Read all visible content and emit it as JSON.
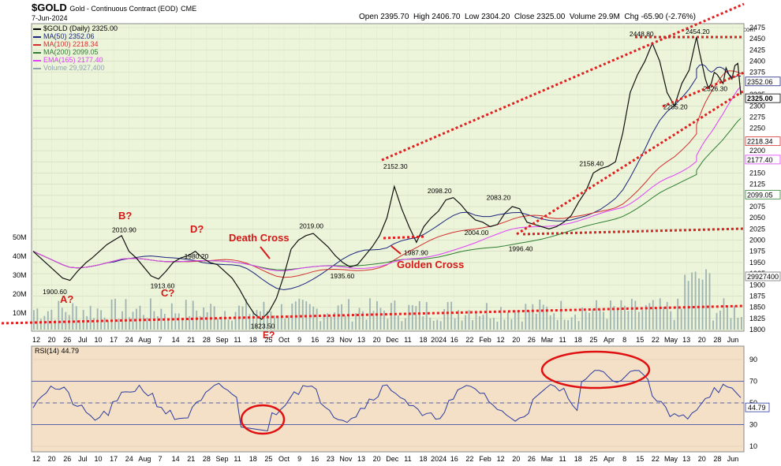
{
  "header": {
    "symbol": "$GOLD",
    "description": "Gold - Continuous Contract (EOD)",
    "exchange": "CME",
    "date": "7-Jun-2024",
    "ohlc": "Open 2395.70  High 2406.70  Low 2304.20  Close 2325.00  Volume 29.9M  Chg -65.90 (-2.76%)",
    "source": "© StockCharts.com"
  },
  "legend": [
    {
      "label": "$GOLD (Daily) 2325.00",
      "color": "#000000",
      "swatch": "ohlc"
    },
    {
      "label": "MA(50) 2352.06",
      "color": "#1a237e"
    },
    {
      "label": "MA(100) 2218.34",
      "color": "#d32f2f"
    },
    {
      "label": "MA(200) 2099.05",
      "color": "#2e7d32"
    },
    {
      "label": "EMA(165) 2177.40",
      "color": "#e040fb"
    },
    {
      "label": "Volume 29,927,400",
      "color": "#90a4ae"
    }
  ],
  "chart_data": {
    "type": "line",
    "price_axis": {
      "min": 1800,
      "max": 2475,
      "ticks": [
        1800,
        1825,
        1850,
        1875,
        1900,
        1925,
        1950,
        1975,
        2000,
        2025,
        2050,
        2075,
        2100,
        2125,
        2150,
        2175,
        2200,
        2225,
        2250,
        2275,
        2300,
        2325,
        2350,
        2375,
        2400,
        2425,
        2450,
        2475
      ]
    },
    "volume_axis": {
      "ticks": [
        "10M",
        "20M",
        "30M",
        "40M",
        "50M"
      ]
    },
    "x_tick_labels": [
      "12",
      "20",
      "26",
      "Jul",
      "10",
      "17",
      "24",
      "Aug",
      "7",
      "14",
      "21",
      "28",
      "Sep",
      "11",
      "18",
      "25",
      "Oct",
      "9",
      "16",
      "23",
      "Nov",
      "13",
      "20",
      "Dec",
      "11",
      "18",
      "2024",
      "16",
      "22",
      "Feb",
      "12",
      "20",
      "26",
      "Mar",
      "11",
      "18",
      "25",
      "Apr",
      "8",
      "15",
      "22",
      "May",
      "13",
      "20",
      "28",
      "Jun"
    ],
    "price_series": {
      "name": "$GOLD (Daily)",
      "x": [
        0,
        5,
        10,
        15,
        20,
        25,
        30,
        36,
        40,
        45,
        50,
        55,
        60,
        65,
        70,
        75,
        80,
        85,
        90,
        95,
        100,
        105,
        110,
        115,
        120,
        125,
        130,
        135,
        140,
        145,
        150,
        155,
        160,
        165,
        170,
        175,
        180,
        185,
        190,
        195,
        200,
        205,
        210,
        215,
        220,
        225,
        230,
        235,
        240,
        245,
        250,
        255,
        260,
        265,
        270,
        275,
        280,
        285,
        290,
        295,
        300,
        305,
        310,
        315,
        320,
        325,
        330,
        335,
        340,
        345,
        350,
        355,
        360,
        365,
        370,
        375,
        380,
        385,
        390,
        395,
        400,
        405,
        410,
        415,
        420,
        425,
        430,
        435,
        440,
        445,
        450
      ],
      "values": [
        1975,
        1960,
        1945,
        1930,
        1915,
        1910,
        1930,
        1950,
        1960,
        1975,
        1990,
        2000,
        2010,
        1975,
        1960,
        1940,
        1920,
        1913,
        1930,
        1950,
        1960,
        1965,
        1975,
        1960,
        1950,
        1945,
        1930,
        1915,
        1890,
        1860,
        1835,
        1823,
        1840,
        1870,
        1920,
        1980,
        2000,
        2010,
        2015,
        2000,
        1985,
        1965,
        1950,
        1940,
        1945,
        1965,
        1985,
        2010,
        2050,
        2120,
        2070,
        2030,
        1995,
        2030,
        2050,
        2065,
        2090,
        2095,
        2080,
        2060,
        2045,
        2040,
        2030,
        2035,
        2060,
        2075,
        2070,
        2040,
        2035,
        2030,
        2025,
        2030,
        2040,
        2055,
        2085,
        2110,
        2150,
        2160,
        2165,
        2175,
        2240,
        2330,
        2370,
        2400,
        2440,
        2400,
        2330,
        2300,
        2350,
        2380,
        2454
      ]
    },
    "tail_series": {
      "x": [
        450,
        452,
        454,
        456,
        458,
        460,
        462,
        464,
        466,
        468,
        470,
        472,
        474,
        476,
        478,
        480
      ],
      "values": [
        2454,
        2420,
        2390,
        2360,
        2340,
        2350,
        2375,
        2370,
        2360,
        2350,
        2385,
        2370,
        2360,
        2390,
        2395,
        2325
      ]
    },
    "price_labels": [
      {
        "text": "1900.60",
        "x": 14,
        "y": 1900.6
      },
      {
        "text": "2010.90",
        "x": 61,
        "y": 2010.9
      },
      {
        "text": "1913.60",
        "x": 87,
        "y": 1913.6
      },
      {
        "text": "1980.20",
        "x": 110,
        "y": 1980.2
      },
      {
        "text": "1823.50",
        "x": 155,
        "y": 1823.5
      },
      {
        "text": "2019.00",
        "x": 188,
        "y": 2019.0
      },
      {
        "text": "1935.60",
        "x": 209,
        "y": 1935.6
      },
      {
        "text": "2152.30",
        "x": 245,
        "y": 2152.3
      },
      {
        "text": "1987.90",
        "x": 259,
        "y": 1987.9
      },
      {
        "text": "2098.20",
        "x": 275,
        "y": 2098.2
      },
      {
        "text": "2004.00",
        "x": 300,
        "y": 2004.0
      },
      {
        "text": "2083.20",
        "x": 315,
        "y": 2083.2
      },
      {
        "text": "1996.40",
        "x": 330,
        "y": 1996.4
      },
      {
        "text": "2158.40",
        "x": 378,
        "y": 2158.4
      },
      {
        "text": "2448.80",
        "x": 412,
        "y": 2448.8
      },
      {
        "text": "2285.20",
        "x": 435,
        "y": 2285.2
      },
      {
        "text": "2454.20",
        "x": 450,
        "y": 2454.2
      },
      {
        "text": "2326.30",
        "x": 462,
        "y": 2326.3
      }
    ],
    "annotations": [
      "Death Cross",
      "Golden Cross",
      "A?",
      "B?",
      "C?",
      "D?",
      "E?"
    ],
    "right_axis_labels": [
      "2352.06",
      "2325.00",
      "2218.34",
      "2177.40",
      "2099.05"
    ],
    "volume_last_label": "29927400",
    "rsi": {
      "title": "RSI(14) 44.79",
      "levels": [
        10,
        30,
        50,
        70,
        90
      ],
      "last": "44.79"
    }
  }
}
